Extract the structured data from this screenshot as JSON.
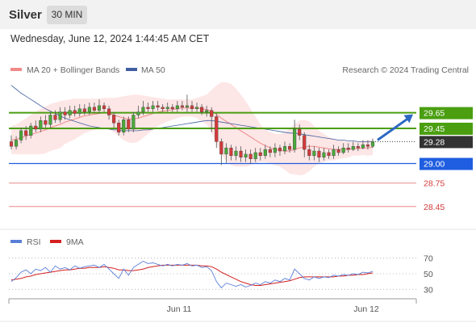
{
  "header": {
    "instrument": "Silver",
    "timeframe": "30 MIN",
    "datetime": "Wednesday, June 12, 2024 1:44:45 AM CET"
  },
  "legend": {
    "ma20": {
      "label": "MA 20 + Bollinger Bands",
      "color": "#f08a8a"
    },
    "ma50": {
      "label": "MA 50",
      "color": "#3f5fa0"
    },
    "copyright": "Research © 2024 Trading Central"
  },
  "rsi_legend": {
    "rsi": {
      "label": "RSI",
      "color": "#5a7fd8"
    },
    "ma9": {
      "label": "9MA",
      "color": "#d42020"
    }
  },
  "colors": {
    "bull": "#49a83a",
    "bear": "#d33a3a",
    "resistance": "#4a9e10",
    "pivot": "#1f5ee0",
    "support": "#e88a8a",
    "last": "#333333",
    "arrow": "#2d68c4"
  },
  "chart_data": [
    {
      "type": "candlestick",
      "ylim": [
        28.2,
        30.1
      ],
      "x_ticks": [
        "Jun 11",
        "Jun 12"
      ],
      "levels": [
        {
          "value": 29.65,
          "label": "29.65",
          "kind": "resistance"
        },
        {
          "value": 29.45,
          "label": "29.45",
          "kind": "resistance"
        },
        {
          "value": 29.28,
          "label": "29.28",
          "kind": "last"
        },
        {
          "value": 29.0,
          "label": "29.00",
          "kind": "pivot"
        },
        {
          "value": 28.75,
          "label": "28.75",
          "kind": "support"
        },
        {
          "value": 28.45,
          "label": "28.45",
          "kind": "support"
        }
      ],
      "candles": [
        [
          29.28,
          29.22,
          29.36,
          29.18
        ],
        [
          29.22,
          29.3,
          29.35,
          29.18
        ],
        [
          29.3,
          29.42,
          29.46,
          29.26
        ],
        [
          29.42,
          29.36,
          29.48,
          29.3
        ],
        [
          29.36,
          29.48,
          29.52,
          29.32
        ],
        [
          29.48,
          29.44,
          29.55,
          29.4
        ],
        [
          29.44,
          29.55,
          29.6,
          29.4
        ],
        [
          29.55,
          29.5,
          29.62,
          29.46
        ],
        [
          29.5,
          29.62,
          29.66,
          29.46
        ],
        [
          29.62,
          29.56,
          29.68,
          29.52
        ],
        [
          29.56,
          29.66,
          29.72,
          29.52
        ],
        [
          29.66,
          29.62,
          29.72,
          29.56
        ],
        [
          29.62,
          29.68,
          29.74,
          29.58
        ],
        [
          29.68,
          29.64,
          29.74,
          29.6
        ],
        [
          29.64,
          29.7,
          29.76,
          29.6
        ],
        [
          29.7,
          29.66,
          29.76,
          29.62
        ],
        [
          29.66,
          29.72,
          29.78,
          29.62
        ],
        [
          29.72,
          29.68,
          29.78,
          29.64
        ],
        [
          29.68,
          29.74,
          29.82,
          29.64
        ],
        [
          29.74,
          29.7,
          29.78,
          29.66
        ],
        [
          29.7,
          29.62,
          29.74,
          29.56
        ],
        [
          29.62,
          29.52,
          29.66,
          29.46
        ],
        [
          29.52,
          29.4,
          29.56,
          29.36
        ],
        [
          29.4,
          29.56,
          29.6,
          29.36
        ],
        [
          29.56,
          29.44,
          29.6,
          29.4
        ],
        [
          29.44,
          29.62,
          29.66,
          29.4
        ],
        [
          29.62,
          29.66,
          29.74,
          29.58
        ],
        [
          29.66,
          29.72,
          29.8,
          29.62
        ],
        [
          29.72,
          29.7,
          29.78,
          29.66
        ],
        [
          29.7,
          29.74,
          29.8,
          29.66
        ],
        [
          29.74,
          29.72,
          29.8,
          29.68
        ],
        [
          29.72,
          29.7,
          29.76,
          29.66
        ],
        [
          29.7,
          29.72,
          29.78,
          29.66
        ],
        [
          29.72,
          29.7,
          29.76,
          29.66
        ],
        [
          29.7,
          29.74,
          29.8,
          29.66
        ],
        [
          29.74,
          29.72,
          29.8,
          29.68
        ],
        [
          29.72,
          29.74,
          29.88,
          29.66
        ],
        [
          29.74,
          29.7,
          29.8,
          29.66
        ],
        [
          29.7,
          29.72,
          29.78,
          29.66
        ],
        [
          29.72,
          29.66,
          29.76,
          29.62
        ],
        [
          29.66,
          29.68,
          29.74,
          29.6
        ],
        [
          29.68,
          29.6,
          29.72,
          29.4
        ],
        [
          29.6,
          29.28,
          29.64,
          29.2
        ],
        [
          29.28,
          29.12,
          29.32,
          28.98
        ],
        [
          29.12,
          29.2,
          29.26,
          29.0
        ],
        [
          29.2,
          29.1,
          29.24,
          29.04
        ],
        [
          29.1,
          29.16,
          29.22,
          29.04
        ],
        [
          29.16,
          29.08,
          29.22,
          29.02
        ],
        [
          29.08,
          29.12,
          29.18,
          29.02
        ],
        [
          29.12,
          29.06,
          29.18,
          29.0
        ],
        [
          29.06,
          29.14,
          29.2,
          29.02
        ],
        [
          29.14,
          29.1,
          29.2,
          29.04
        ],
        [
          29.1,
          29.18,
          29.24,
          29.06
        ],
        [
          29.18,
          29.14,
          29.22,
          29.08
        ],
        [
          29.14,
          29.2,
          29.26,
          29.08
        ],
        [
          29.2,
          29.16,
          29.24,
          29.1
        ],
        [
          29.16,
          29.22,
          29.28,
          29.12
        ],
        [
          29.22,
          29.18,
          29.26,
          29.14
        ],
        [
          29.18,
          29.44,
          29.56,
          29.14
        ],
        [
          29.44,
          29.36,
          29.5,
          29.3
        ],
        [
          29.36,
          29.18,
          29.4,
          29.08
        ],
        [
          29.18,
          29.1,
          29.24,
          29.04
        ],
        [
          29.1,
          29.16,
          29.22,
          29.04
        ],
        [
          29.16,
          29.08,
          29.2,
          29.02
        ],
        [
          29.08,
          29.14,
          29.2,
          29.04
        ],
        [
          29.14,
          29.1,
          29.18,
          29.06
        ],
        [
          29.1,
          29.18,
          29.24,
          29.06
        ],
        [
          29.18,
          29.14,
          29.22,
          29.1
        ],
        [
          29.14,
          29.2,
          29.26,
          29.12
        ],
        [
          29.2,
          29.18,
          29.26,
          29.14
        ],
        [
          29.18,
          29.22,
          29.28,
          29.16
        ],
        [
          29.22,
          29.2,
          29.26,
          29.16
        ],
        [
          29.2,
          29.24,
          29.3,
          29.18
        ],
        [
          29.24,
          29.22,
          29.3,
          29.18
        ],
        [
          29.22,
          29.28,
          29.32,
          29.2
        ]
      ],
      "ma20": [
        29.3,
        29.31,
        29.33,
        29.35,
        29.37,
        29.39,
        29.41,
        29.43,
        29.46,
        29.48,
        29.5,
        29.53,
        29.55,
        29.57,
        29.59,
        29.61,
        29.62,
        29.63,
        29.64,
        29.65,
        29.64,
        29.62,
        29.6,
        29.58,
        29.57,
        29.57,
        29.58,
        29.6,
        29.62,
        29.64,
        29.66,
        29.67,
        29.68,
        29.69,
        29.7,
        29.71,
        29.71,
        29.71,
        29.71,
        29.7,
        29.69,
        29.67,
        29.63,
        29.58,
        29.54,
        29.5,
        29.46,
        29.42,
        29.38,
        29.34,
        29.3,
        29.26,
        29.23,
        29.2,
        29.18,
        29.17,
        29.16,
        29.16,
        29.18,
        29.2,
        29.21,
        29.22,
        29.22,
        29.21,
        29.2,
        29.19,
        29.18,
        29.18,
        29.18,
        29.18,
        29.19,
        29.19,
        29.2,
        29.2,
        29.21
      ],
      "bb_upper": [
        29.48,
        29.5,
        29.54,
        29.58,
        29.62,
        29.66,
        29.7,
        29.73,
        29.76,
        29.78,
        29.8,
        29.81,
        29.82,
        29.83,
        29.83,
        29.83,
        29.83,
        29.83,
        29.83,
        29.84,
        29.84,
        29.84,
        29.85,
        29.86,
        29.87,
        29.88,
        29.88,
        29.87,
        29.86,
        29.85,
        29.84,
        29.83,
        29.82,
        29.82,
        29.82,
        29.82,
        29.82,
        29.82,
        29.84,
        29.86,
        29.88,
        29.94,
        30.0,
        30.04,
        30.04,
        30.02,
        29.96,
        29.88,
        29.8,
        29.7,
        29.6,
        29.5,
        29.44,
        29.4,
        29.38,
        29.38,
        29.4,
        29.45,
        29.5,
        29.55,
        29.56,
        29.54,
        29.48,
        29.42,
        29.38,
        29.34,
        29.32,
        29.3,
        29.29,
        29.28,
        29.28,
        29.28,
        29.29,
        29.3,
        29.31
      ],
      "bb_lower": [
        29.12,
        29.12,
        29.12,
        29.12,
        29.12,
        29.12,
        29.12,
        29.13,
        29.16,
        29.18,
        29.2,
        29.25,
        29.28,
        29.31,
        29.35,
        29.39,
        29.41,
        29.43,
        29.45,
        29.46,
        29.44,
        29.4,
        29.35,
        29.3,
        29.27,
        29.26,
        29.28,
        29.33,
        29.38,
        29.43,
        29.48,
        29.51,
        29.54,
        29.56,
        29.58,
        29.6,
        29.6,
        29.6,
        29.58,
        29.54,
        29.5,
        29.4,
        29.26,
        29.12,
        29.04,
        28.98,
        28.96,
        28.96,
        28.96,
        28.98,
        29.0,
        29.02,
        29.02,
        29.0,
        28.98,
        28.96,
        28.92,
        28.87,
        28.86,
        28.85,
        28.86,
        28.9,
        28.96,
        29.0,
        29.02,
        29.04,
        29.04,
        29.06,
        29.07,
        29.08,
        29.1,
        29.1,
        29.11,
        29.1,
        29.11
      ],
      "ma50": [
        30.0,
        29.95,
        29.9,
        29.86,
        29.82,
        29.78,
        29.74,
        29.7,
        29.67,
        29.64,
        29.61,
        29.58,
        29.56,
        29.54,
        29.52,
        29.5,
        29.48,
        29.47,
        29.46,
        29.45,
        29.44,
        29.43,
        29.43,
        29.42,
        29.42,
        29.42,
        29.42,
        29.43,
        29.43,
        29.44,
        29.45,
        29.46,
        29.47,
        29.48,
        29.49,
        29.5,
        29.51,
        29.52,
        29.53,
        29.54,
        29.55,
        29.55,
        29.54,
        29.53,
        29.52,
        29.51,
        29.5,
        29.49,
        29.48,
        29.47,
        29.46,
        29.45,
        29.44,
        29.43,
        29.42,
        29.41,
        29.4,
        29.39,
        29.39,
        29.38,
        29.37,
        29.36,
        29.35,
        29.34,
        29.33,
        29.32,
        29.31,
        29.3,
        29.3,
        29.29,
        29.29,
        29.28,
        29.28,
        29.28,
        29.28
      ],
      "projection": {
        "from": 29.28,
        "to": 29.65
      }
    },
    {
      "type": "line",
      "name": "RSI",
      "ylim": [
        20,
        80
      ],
      "y_ticks": [
        {
          "value": 70,
          "label": "70"
        },
        {
          "value": 50,
          "label": "50"
        },
        {
          "value": 30,
          "label": "30"
        }
      ],
      "rsi": [
        40,
        45,
        52,
        55,
        50,
        56,
        54,
        58,
        52,
        60,
        56,
        58,
        55,
        60,
        57,
        59,
        60,
        61,
        58,
        62,
        56,
        50,
        44,
        56,
        48,
        58,
        62,
        66,
        63,
        64,
        62,
        60,
        62,
        60,
        62,
        61,
        63,
        60,
        61,
        58,
        59,
        54,
        40,
        32,
        38,
        36,
        34,
        36,
        33,
        35,
        38,
        36,
        40,
        38,
        42,
        40,
        44,
        42,
        56,
        50,
        44,
        42,
        46,
        44,
        46,
        45,
        48,
        47,
        49,
        48,
        50,
        49,
        52,
        51,
        53
      ],
      "ma9": [
        42,
        43,
        44,
        46,
        47,
        49,
        50,
        51,
        52,
        53,
        54,
        55,
        55,
        56,
        57,
        57,
        58,
        58,
        58,
        59,
        58,
        57,
        55,
        55,
        54,
        54,
        55,
        56,
        58,
        59,
        60,
        61,
        61,
        61,
        61,
        61,
        61,
        61,
        61,
        60,
        60,
        59,
        56,
        52,
        49,
        46,
        43,
        40,
        38,
        36,
        35,
        35,
        36,
        37,
        38,
        39,
        40,
        41,
        43,
        45,
        46,
        46,
        46,
        46,
        46,
        46,
        46,
        47,
        47,
        48,
        48,
        49,
        49,
        50,
        51
      ]
    }
  ]
}
